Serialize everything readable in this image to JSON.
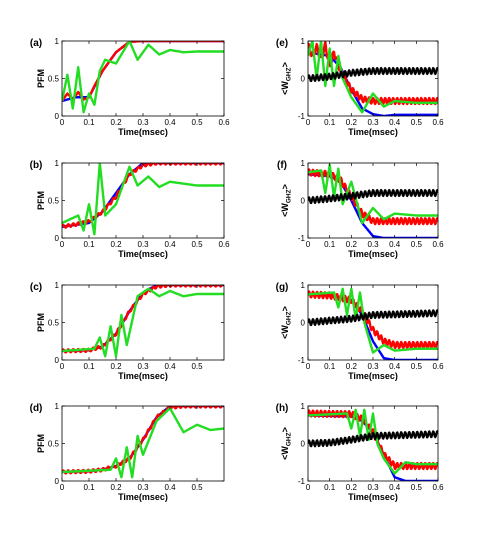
{
  "colors": {
    "blue": "#0000ff",
    "red": "#ff0000",
    "green": "#22dd22",
    "black": "#000000"
  },
  "chart_data": [
    {
      "type": "line",
      "panel_label": "(a)",
      "xlabel": "Time(msec)",
      "ylabel": "PFM",
      "xlim": [
        0,
        0.6
      ],
      "ylim": [
        0,
        1
      ],
      "xticks": [
        "0",
        "0.1",
        "0.2",
        "0.3",
        "0.4",
        "0.5",
        "0.6"
      ],
      "yticks": [
        "0",
        "0.5",
        "1"
      ],
      "series": [
        {
          "color": "blue",
          "x": [
            0,
            0.05,
            0.1,
            0.15,
            0.2,
            0.25,
            0.3,
            0.6
          ],
          "y": [
            0.2,
            0.25,
            0.25,
            0.6,
            0.85,
            0.99,
            1.0,
            1.0
          ]
        },
        {
          "color": "red",
          "x": [
            0,
            0.02,
            0.04,
            0.06,
            0.08,
            0.1,
            0.12,
            0.15,
            0.2,
            0.25,
            0.3,
            0.6
          ],
          "y": [
            0.2,
            0.3,
            0.22,
            0.32,
            0.22,
            0.25,
            0.4,
            0.6,
            0.85,
            0.99,
            1.0,
            1.0
          ]
        },
        {
          "color": "green",
          "x": [
            0,
            0.02,
            0.04,
            0.06,
            0.08,
            0.1,
            0.12,
            0.14,
            0.16,
            0.2,
            0.25,
            0.28,
            0.32,
            0.36,
            0.4,
            0.45,
            0.5,
            0.6
          ],
          "y": [
            0.2,
            0.55,
            0.1,
            0.65,
            0.05,
            0.3,
            0.15,
            0.6,
            0.75,
            0.7,
            1.0,
            0.75,
            0.95,
            0.82,
            0.88,
            0.85,
            0.86,
            0.86
          ]
        }
      ]
    },
    {
      "type": "line",
      "panel_label": "(e)",
      "xlabel": "Time(msec)",
      "ylabel": "<W_GHZ>",
      "xlim": [
        0,
        0.6
      ],
      "ylim": [
        -1,
        1
      ],
      "xticks": [
        "0",
        "0.1",
        "0.2",
        "0.3",
        "0.4",
        "0.5",
        "0.6"
      ],
      "yticks": [
        "-1",
        "0",
        "1"
      ],
      "series": [
        {
          "color": "blue",
          "x": [
            0,
            0.1,
            0.15,
            0.2,
            0.25,
            0.3,
            0.35,
            0.4,
            0.6
          ],
          "y": [
            0.7,
            0.6,
            0.3,
            -0.3,
            -0.8,
            -0.95,
            -1.0,
            -0.97,
            -0.97
          ]
        },
        {
          "color": "red",
          "x": [
            0,
            0.02,
            0.04,
            0.06,
            0.08,
            0.1,
            0.12,
            0.15,
            0.2,
            0.25,
            0.3,
            0.6
          ],
          "y": [
            0.9,
            0.6,
            0.85,
            0.5,
            0.9,
            0.3,
            0.7,
            0.2,
            -0.3,
            -0.55,
            -0.6,
            -0.6
          ],
          "osc": 0.08
        },
        {
          "color": "green",
          "x": [
            0,
            0.02,
            0.04,
            0.06,
            0.08,
            0.1,
            0.12,
            0.14,
            0.16,
            0.2,
            0.25,
            0.3,
            0.35,
            0.4,
            0.5,
            0.6
          ],
          "y": [
            0.6,
            1.0,
            0.0,
            1.0,
            -0.2,
            0.8,
            -0.2,
            0.6,
            0.0,
            -0.5,
            -0.9,
            -0.4,
            -0.75,
            -0.6,
            -0.65,
            -0.65
          ]
        },
        {
          "color": "black",
          "x": [
            0,
            0.1,
            0.2,
            0.3,
            0.6
          ],
          "y": [
            0.0,
            0.05,
            0.15,
            0.2,
            0.2
          ],
          "osc": 0.08
        }
      ]
    },
    {
      "type": "line",
      "panel_label": "(b)",
      "xlabel": "Time(msec)",
      "ylabel": "PFM",
      "xlim": [
        0,
        0.6
      ],
      "ylim": [
        0,
        1
      ],
      "xticks": [
        "0",
        "0.1",
        "0.2",
        "0.3",
        "0.4",
        "0.5",
        "0.6"
      ],
      "yticks": [
        "0",
        "0.5",
        "1"
      ],
      "series": [
        {
          "color": "blue",
          "x": [
            0,
            0.1,
            0.15,
            0.2,
            0.25,
            0.3,
            0.35,
            0.6
          ],
          "y": [
            0.15,
            0.2,
            0.35,
            0.6,
            0.85,
            1.0,
            1.0,
            1.0
          ]
        },
        {
          "color": "red",
          "x": [
            0,
            0.05,
            0.1,
            0.15,
            0.2,
            0.25,
            0.3,
            0.35,
            0.6
          ],
          "y": [
            0.15,
            0.18,
            0.22,
            0.35,
            0.55,
            0.85,
            0.97,
            1.0,
            1.0
          ],
          "osc": 0.02
        },
        {
          "color": "green",
          "x": [
            0,
            0.06,
            0.08,
            0.1,
            0.12,
            0.14,
            0.16,
            0.2,
            0.25,
            0.28,
            0.32,
            0.36,
            0.4,
            0.5,
            0.6
          ],
          "y": [
            0.2,
            0.3,
            0.1,
            0.45,
            0.05,
            1.0,
            0.3,
            0.45,
            0.95,
            0.7,
            0.82,
            0.68,
            0.75,
            0.7,
            0.7
          ]
        }
      ]
    },
    {
      "type": "line",
      "panel_label": "(f)",
      "xlabel": "Time(msec)",
      "ylabel": "<W_GHZ>",
      "xlim": [
        0,
        0.6
      ],
      "ylim": [
        -1,
        1
      ],
      "xticks": [
        "0",
        "0.1",
        "0.2",
        "0.3",
        "0.4",
        "0.5",
        "0.6"
      ],
      "yticks": [
        "-1",
        "0",
        "1"
      ],
      "series": [
        {
          "color": "blue",
          "x": [
            0,
            0.1,
            0.15,
            0.2,
            0.25,
            0.3,
            0.35,
            0.6
          ],
          "y": [
            0.7,
            0.65,
            0.5,
            0.0,
            -0.6,
            -0.95,
            -1.0,
            -1.0
          ]
        },
        {
          "color": "red",
          "x": [
            0,
            0.1,
            0.15,
            0.2,
            0.25,
            0.3,
            0.6
          ],
          "y": [
            0.75,
            0.7,
            0.55,
            0.1,
            -0.35,
            -0.55,
            -0.55
          ],
          "osc": 0.08
        },
        {
          "color": "green",
          "x": [
            0,
            0.06,
            0.08,
            0.1,
            0.12,
            0.14,
            0.16,
            0.2,
            0.25,
            0.3,
            0.35,
            0.4,
            0.5,
            0.6
          ],
          "y": [
            0.75,
            0.8,
            0.2,
            0.95,
            0.1,
            0.85,
            -0.1,
            0.5,
            -0.6,
            -0.2,
            -0.5,
            -0.35,
            -0.4,
            -0.4
          ]
        },
        {
          "color": "black",
          "x": [
            0,
            0.1,
            0.2,
            0.3,
            0.6
          ],
          "y": [
            0.0,
            0.05,
            0.12,
            0.2,
            0.2
          ],
          "osc": 0.08
        }
      ]
    },
    {
      "type": "line",
      "panel_label": "(c)",
      "xlabel": "Time(msec)",
      "ylabel": "PFM",
      "xlim": [
        0,
        0.6
      ],
      "ylim": [
        0,
        1
      ],
      "xticks": [
        "0",
        "0.1",
        "0.2",
        "0.3",
        "0.4",
        "0.5"
      ],
      "yticks": [
        "0",
        "0.5",
        "1"
      ],
      "series": [
        {
          "color": "blue",
          "x": [
            0,
            0.1,
            0.15,
            0.2,
            0.25,
            0.3,
            0.35,
            0.4,
            0.6
          ],
          "y": [
            0.12,
            0.13,
            0.18,
            0.35,
            0.65,
            0.9,
            1.0,
            1.0,
            1.0
          ]
        },
        {
          "color": "red",
          "x": [
            0,
            0.1,
            0.15,
            0.2,
            0.25,
            0.3,
            0.35,
            0.4,
            0.6
          ],
          "y": [
            0.12,
            0.13,
            0.18,
            0.35,
            0.65,
            0.88,
            0.98,
            1.0,
            1.0
          ],
          "osc": 0.02
        },
        {
          "color": "green",
          "x": [
            0,
            0.12,
            0.14,
            0.16,
            0.18,
            0.2,
            0.22,
            0.24,
            0.28,
            0.32,
            0.36,
            0.4,
            0.45,
            0.5,
            0.6
          ],
          "y": [
            0.12,
            0.15,
            0.3,
            0.05,
            0.45,
            0.05,
            0.6,
            0.2,
            0.85,
            0.95,
            0.85,
            0.92,
            0.85,
            0.88,
            0.88
          ]
        }
      ]
    },
    {
      "type": "line",
      "panel_label": "(g)",
      "xlabel": "Time(msec)",
      "ylabel": "<W_GHZ>",
      "xlim": [
        0,
        0.6
      ],
      "ylim": [
        -1,
        1
      ],
      "xticks": [
        "0",
        "0.1",
        "0.2",
        "0.3",
        "0.4",
        "0.5",
        "0.6"
      ],
      "yticks": [
        "-1",
        "0",
        "1"
      ],
      "series": [
        {
          "color": "blue",
          "x": [
            0,
            0.1,
            0.2,
            0.25,
            0.3,
            0.35,
            0.4,
            0.6
          ],
          "y": [
            0.75,
            0.72,
            0.6,
            0.2,
            -0.5,
            -0.95,
            -1.0,
            -1.0
          ]
        },
        {
          "color": "red",
          "x": [
            0,
            0.1,
            0.2,
            0.25,
            0.3,
            0.35,
            0.4,
            0.6
          ],
          "y": [
            0.75,
            0.72,
            0.6,
            0.3,
            -0.2,
            -0.5,
            -0.6,
            -0.6
          ],
          "osc": 0.08
        },
        {
          "color": "green",
          "x": [
            0,
            0.12,
            0.14,
            0.16,
            0.18,
            0.2,
            0.22,
            0.24,
            0.26,
            0.3,
            0.35,
            0.4,
            0.5,
            0.6
          ],
          "y": [
            0.75,
            0.8,
            0.4,
            0.9,
            0.2,
            0.9,
            0.1,
            0.8,
            0.0,
            -0.8,
            -0.6,
            -0.75,
            -0.7,
            -0.7
          ]
        },
        {
          "color": "black",
          "x": [
            0,
            0.1,
            0.2,
            0.3,
            0.6
          ],
          "y": [
            0.0,
            0.05,
            0.1,
            0.2,
            0.25
          ],
          "osc": 0.08
        }
      ]
    },
    {
      "type": "line",
      "panel_label": "(d)",
      "xlabel": "Time(msec)",
      "ylabel": "PFM",
      "xlim": [
        0,
        0.6
      ],
      "ylim": [
        0,
        1
      ],
      "xticks": [
        "0",
        "0.1",
        "0.2",
        "0.3",
        "0.4",
        "0.5"
      ],
      "yticks": [
        "0",
        "0.5",
        "1"
      ],
      "series": [
        {
          "color": "blue",
          "x": [
            0,
            0.1,
            0.15,
            0.2,
            0.25,
            0.3,
            0.35,
            0.4,
            0.45,
            0.6
          ],
          "y": [
            0.12,
            0.13,
            0.15,
            0.2,
            0.3,
            0.55,
            0.85,
            1.0,
            1.0,
            1.0
          ]
        },
        {
          "color": "red",
          "x": [
            0,
            0.1,
            0.15,
            0.2,
            0.25,
            0.3,
            0.35,
            0.4,
            0.45,
            0.6
          ],
          "y": [
            0.12,
            0.13,
            0.15,
            0.2,
            0.3,
            0.55,
            0.85,
            0.98,
            1.0,
            1.0
          ],
          "osc": 0.02
        },
        {
          "color": "green",
          "x": [
            0,
            0.18,
            0.2,
            0.22,
            0.24,
            0.26,
            0.28,
            0.3,
            0.35,
            0.4,
            0.45,
            0.5,
            0.55,
            0.6
          ],
          "y": [
            0.12,
            0.15,
            0.3,
            0.05,
            0.45,
            0.05,
            0.6,
            0.35,
            0.8,
            0.97,
            0.65,
            0.75,
            0.68,
            0.7
          ]
        }
      ]
    },
    {
      "type": "line",
      "panel_label": "(h)",
      "xlabel": "Time(msec)",
      "ylabel": "<W_GHZ>",
      "xlim": [
        0,
        0.6
      ],
      "ylim": [
        -1,
        1
      ],
      "xticks": [
        "0",
        "0.1",
        "0.2",
        "0.3",
        "0.4",
        "0.5",
        "0.6"
      ],
      "yticks": [
        "-1",
        "0",
        "1"
      ],
      "series": [
        {
          "color": "blue",
          "x": [
            0,
            0.2,
            0.25,
            0.3,
            0.35,
            0.4,
            0.45,
            0.6
          ],
          "y": [
            0.75,
            0.72,
            0.6,
            0.3,
            -0.3,
            -0.9,
            -1.0,
            -1.0
          ]
        },
        {
          "color": "red",
          "x": [
            0,
            0.2,
            0.25,
            0.3,
            0.35,
            0.4,
            0.6
          ],
          "y": [
            0.8,
            0.78,
            0.65,
            0.3,
            -0.3,
            -0.6,
            -0.6
          ],
          "osc": 0.08
        },
        {
          "color": "green",
          "x": [
            0,
            0.18,
            0.2,
            0.22,
            0.24,
            0.26,
            0.28,
            0.3,
            0.32,
            0.35,
            0.4,
            0.45,
            0.5,
            0.6
          ],
          "y": [
            0.75,
            0.8,
            0.4,
            0.9,
            0.2,
            0.9,
            0.1,
            0.8,
            0.0,
            -0.4,
            -0.8,
            -0.5,
            -0.55,
            -0.55
          ]
        },
        {
          "color": "black",
          "x": [
            0,
            0.1,
            0.2,
            0.3,
            0.6
          ],
          "y": [
            0.0,
            0.02,
            0.1,
            0.2,
            0.25
          ],
          "osc": 0.08
        }
      ]
    }
  ]
}
